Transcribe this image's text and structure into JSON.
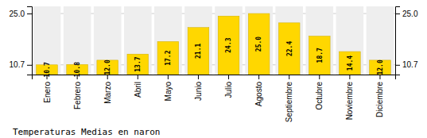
{
  "chart_data": {
    "type": "bar",
    "title": "Temperaturas Medias en naron",
    "categories": [
      "Enero",
      "Febrero",
      "Marzo",
      "Abril",
      "Mayo",
      "Junio",
      "Julio",
      "Agosto",
      "Septiembre",
      "Octubre",
      "Noviembre",
      "Diciembre"
    ],
    "values": [
      10.7,
      10.8,
      12.0,
      13.7,
      17.2,
      21.1,
      24.3,
      25.0,
      22.4,
      18.7,
      14.4,
      12.0
    ],
    "value_labels": [
      "10.7",
      "10.8",
      "12.0",
      "13.7",
      "17.2",
      "21.1",
      "24.3",
      "25.0",
      "22.4",
      "18.7",
      "14.4",
      "12.0"
    ],
    "data_labels": true,
    "color": "#FFD700",
    "ylim": [
      8.0,
      27.0
    ],
    "yticks": [
      10.7,
      {
        "value": 25.0,
        "label": "25.0"
      }
    ],
    "y2lim": [
      8.0,
      27.0
    ],
    "y2ticks": [
      10.7,
      {
        "value": 25.0,
        "label": "25.0"
      }
    ],
    "grid": true
  }
}
